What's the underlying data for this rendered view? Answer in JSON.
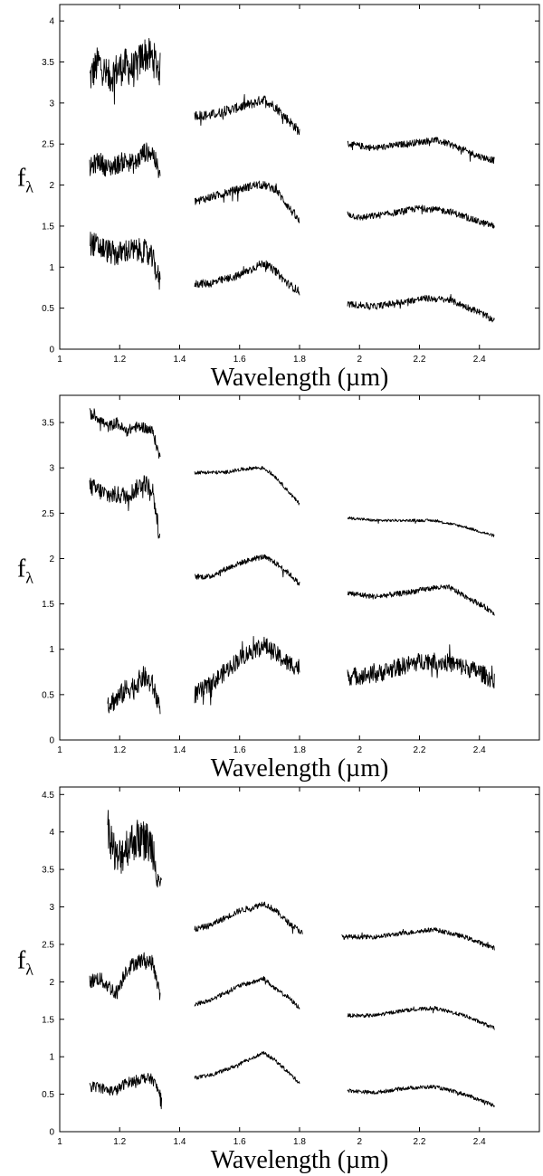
{
  "chart_data": [
    {
      "type": "line",
      "xlabel": "Wavelength (µm)",
      "ylabel": "f",
      "ylabel_sub": "λ",
      "xlim": [
        1.0,
        2.6
      ],
      "ylim": [
        0,
        4.2
      ],
      "xticks": [
        1,
        1.2,
        1.4,
        1.6,
        1.8,
        2,
        2.2,
        2.4
      ],
      "yticks": [
        0,
        0.5,
        1,
        1.5,
        2,
        2.5,
        3,
        3.5,
        4
      ],
      "grid": false,
      "series": [
        {
          "noise": [
            0.22,
            0.06,
            0.04
          ],
          "J": [
            [
              1.1,
              3.3
            ],
            [
              1.13,
              3.5
            ],
            [
              1.16,
              3.3
            ],
            [
              1.19,
              3.4
            ],
            [
              1.22,
              3.45
            ],
            [
              1.25,
              3.4
            ],
            [
              1.28,
              3.6
            ],
            [
              1.31,
              3.55
            ],
            [
              1.335,
              3.4
            ]
          ],
          "H": [
            [
              1.45,
              2.85
            ],
            [
              1.5,
              2.85
            ],
            [
              1.55,
              2.9
            ],
            [
              1.6,
              2.95
            ],
            [
              1.65,
              3.0
            ],
            [
              1.68,
              3.05
            ],
            [
              1.72,
              2.95
            ],
            [
              1.76,
              2.8
            ],
            [
              1.8,
              2.65
            ]
          ],
          "K": [
            [
              1.96,
              2.5
            ],
            [
              2.05,
              2.45
            ],
            [
              2.15,
              2.5
            ],
            [
              2.25,
              2.55
            ],
            [
              2.3,
              2.5
            ],
            [
              2.4,
              2.35
            ],
            [
              2.45,
              2.3
            ]
          ]
        },
        {
          "noise": [
            0.12,
            0.05,
            0.04
          ],
          "J": [
            [
              1.1,
              2.2
            ],
            [
              1.13,
              2.3
            ],
            [
              1.16,
              2.2
            ],
            [
              1.19,
              2.25
            ],
            [
              1.22,
              2.3
            ],
            [
              1.25,
              2.25
            ],
            [
              1.28,
              2.4
            ],
            [
              1.31,
              2.4
            ],
            [
              1.335,
              2.1
            ]
          ],
          "H": [
            [
              1.45,
              1.8
            ],
            [
              1.5,
              1.85
            ],
            [
              1.55,
              1.9
            ],
            [
              1.6,
              1.95
            ],
            [
              1.65,
              2.0
            ],
            [
              1.68,
              2.0
            ],
            [
              1.72,
              1.95
            ],
            [
              1.76,
              1.75
            ],
            [
              1.8,
              1.55
            ]
          ],
          "K": [
            [
              1.96,
              1.65
            ],
            [
              2.0,
              1.6
            ],
            [
              2.1,
              1.65
            ],
            [
              2.2,
              1.72
            ],
            [
              2.3,
              1.68
            ],
            [
              2.4,
              1.55
            ],
            [
              2.45,
              1.5
            ]
          ]
        },
        {
          "noise": [
            0.15,
            0.05,
            0.04
          ],
          "J": [
            [
              1.1,
              1.3
            ],
            [
              1.13,
              1.25
            ],
            [
              1.16,
              1.2
            ],
            [
              1.19,
              1.15
            ],
            [
              1.22,
              1.2
            ],
            [
              1.25,
              1.2
            ],
            [
              1.28,
              1.2
            ],
            [
              1.31,
              1.1
            ],
            [
              1.335,
              0.8
            ]
          ],
          "H": [
            [
              1.45,
              0.8
            ],
            [
              1.5,
              0.8
            ],
            [
              1.55,
              0.85
            ],
            [
              1.6,
              0.9
            ],
            [
              1.65,
              1.0
            ],
            [
              1.68,
              1.05
            ],
            [
              1.72,
              0.95
            ],
            [
              1.76,
              0.8
            ],
            [
              1.8,
              0.7
            ]
          ],
          "K": [
            [
              1.96,
              0.55
            ],
            [
              2.05,
              0.52
            ],
            [
              2.15,
              0.58
            ],
            [
              2.22,
              0.62
            ],
            [
              2.3,
              0.6
            ],
            [
              2.4,
              0.45
            ],
            [
              2.45,
              0.35
            ]
          ]
        }
      ]
    },
    {
      "type": "line",
      "xlabel": "Wavelength (µm)",
      "ylabel": "f",
      "ylabel_sub": "λ",
      "xlim": [
        1.0,
        2.6
      ],
      "ylim": [
        0,
        3.8
      ],
      "xticks": [
        1,
        1.2,
        1.4,
        1.6,
        1.8,
        2,
        2.2,
        2.4
      ],
      "yticks": [
        0,
        0.5,
        1,
        1.5,
        2,
        2.5,
        3,
        3.5
      ],
      "grid": false,
      "series": [
        {
          "noise": [
            0.06,
            0.02,
            0.015
          ],
          "J": [
            [
              1.1,
              3.6
            ],
            [
              1.13,
              3.55
            ],
            [
              1.16,
              3.45
            ],
            [
              1.19,
              3.5
            ],
            [
              1.22,
              3.4
            ],
            [
              1.25,
              3.45
            ],
            [
              1.28,
              3.45
            ],
            [
              1.31,
              3.4
            ],
            [
              1.335,
              3.1
            ]
          ],
          "H": [
            [
              1.45,
              2.95
            ],
            [
              1.5,
              2.95
            ],
            [
              1.55,
              2.95
            ],
            [
              1.6,
              2.98
            ],
            [
              1.65,
              3.0
            ],
            [
              1.68,
              3.0
            ],
            [
              1.72,
              2.9
            ],
            [
              1.76,
              2.75
            ],
            [
              1.8,
              2.6
            ]
          ],
          "K": [
            [
              1.96,
              2.45
            ],
            [
              2.05,
              2.42
            ],
            [
              2.15,
              2.42
            ],
            [
              2.25,
              2.42
            ],
            [
              2.35,
              2.35
            ],
            [
              2.45,
              2.25
            ]
          ]
        },
        {
          "noise": [
            0.1,
            0.03,
            0.03
          ],
          "J": [
            [
              1.1,
              2.8
            ],
            [
              1.13,
              2.75
            ],
            [
              1.16,
              2.7
            ],
            [
              1.19,
              2.7
            ],
            [
              1.22,
              2.7
            ],
            [
              1.25,
              2.75
            ],
            [
              1.28,
              2.85
            ],
            [
              1.31,
              2.75
            ],
            [
              1.335,
              2.2
            ]
          ],
          "H": [
            [
              1.45,
              1.8
            ],
            [
              1.5,
              1.8
            ],
            [
              1.55,
              1.88
            ],
            [
              1.6,
              1.95
            ],
            [
              1.65,
              2.0
            ],
            [
              1.68,
              2.02
            ],
            [
              1.72,
              1.95
            ],
            [
              1.76,
              1.85
            ],
            [
              1.8,
              1.72
            ]
          ],
          "K": [
            [
              1.96,
              1.62
            ],
            [
              2.05,
              1.58
            ],
            [
              2.15,
              1.62
            ],
            [
              2.25,
              1.68
            ],
            [
              2.3,
              1.68
            ],
            [
              2.4,
              1.5
            ],
            [
              2.45,
              1.4
            ]
          ]
        },
        {
          "noise": [
            0.12,
            0.1,
            0.1
          ],
          "J": [
            [
              1.16,
              0.4
            ],
            [
              1.19,
              0.45
            ],
            [
              1.22,
              0.55
            ],
            [
              1.25,
              0.6
            ],
            [
              1.28,
              0.7
            ],
            [
              1.31,
              0.6
            ],
            [
              1.335,
              0.35
            ]
          ],
          "H": [
            [
              1.45,
              0.5
            ],
            [
              1.5,
              0.6
            ],
            [
              1.55,
              0.75
            ],
            [
              1.6,
              0.9
            ],
            [
              1.65,
              1.0
            ],
            [
              1.68,
              1.05
            ],
            [
              1.72,
              0.95
            ],
            [
              1.76,
              0.85
            ],
            [
              1.8,
              0.8
            ]
          ],
          "K": [
            [
              1.96,
              0.7
            ],
            [
              2.05,
              0.72
            ],
            [
              2.15,
              0.82
            ],
            [
              2.22,
              0.88
            ],
            [
              2.3,
              0.85
            ],
            [
              2.4,
              0.75
            ],
            [
              2.45,
              0.65
            ]
          ]
        }
      ]
    },
    {
      "type": "line",
      "xlabel": "Wavelength (µm)",
      "ylabel": "f",
      "ylabel_sub": "λ",
      "xlim": [
        1.0,
        2.6
      ],
      "ylim": [
        0,
        4.6
      ],
      "xticks": [
        1,
        1.2,
        1.4,
        1.6,
        1.8,
        2,
        2.2,
        2.4
      ],
      "yticks": [
        0,
        0.5,
        1,
        1.5,
        2,
        2.5,
        3,
        3.5,
        4,
        4.5
      ],
      "grid": false,
      "series": [
        {
          "noise": [
            0.28,
            0.04,
            0.03
          ],
          "J": [
            [
              1.16,
              4.1
            ],
            [
              1.19,
              3.6
            ],
            [
              1.22,
              3.8
            ],
            [
              1.25,
              3.9
            ],
            [
              1.28,
              3.9
            ],
            [
              1.31,
              3.8
            ],
            [
              1.34,
              3.2
            ]
          ],
          "H": [
            [
              1.45,
              2.7
            ],
            [
              1.5,
              2.75
            ],
            [
              1.55,
              2.85
            ],
            [
              1.6,
              2.95
            ],
            [
              1.65,
              3.0
            ],
            [
              1.68,
              3.05
            ],
            [
              1.72,
              2.95
            ],
            [
              1.76,
              2.8
            ],
            [
              1.81,
              2.65
            ]
          ],
          "K": [
            [
              1.94,
              2.6
            ],
            [
              2.05,
              2.6
            ],
            [
              2.15,
              2.65
            ],
            [
              2.25,
              2.7
            ],
            [
              2.35,
              2.6
            ],
            [
              2.45,
              2.45
            ]
          ]
        },
        {
          "noise": [
            0.1,
            0.03,
            0.025
          ],
          "J": [
            [
              1.1,
              2.0
            ],
            [
              1.13,
              2.05
            ],
            [
              1.16,
              1.95
            ],
            [
              1.19,
              1.85
            ],
            [
              1.22,
              2.15
            ],
            [
              1.25,
              2.25
            ],
            [
              1.28,
              2.3
            ],
            [
              1.31,
              2.25
            ],
            [
              1.335,
              1.8
            ]
          ],
          "H": [
            [
              1.45,
              1.7
            ],
            [
              1.5,
              1.75
            ],
            [
              1.55,
              1.85
            ],
            [
              1.6,
              1.95
            ],
            [
              1.65,
              2.0
            ],
            [
              1.68,
              2.05
            ],
            [
              1.72,
              1.9
            ],
            [
              1.76,
              1.8
            ],
            [
              1.8,
              1.65
            ]
          ],
          "K": [
            [
              1.96,
              1.55
            ],
            [
              2.05,
              1.55
            ],
            [
              2.15,
              1.62
            ],
            [
              2.25,
              1.65
            ],
            [
              2.35,
              1.55
            ],
            [
              2.45,
              1.38
            ]
          ]
        },
        {
          "noise": [
            0.07,
            0.025,
            0.025
          ],
          "J": [
            [
              1.1,
              0.6
            ],
            [
              1.13,
              0.6
            ],
            [
              1.16,
              0.55
            ],
            [
              1.19,
              0.55
            ],
            [
              1.22,
              0.65
            ],
            [
              1.25,
              0.68
            ],
            [
              1.28,
              0.72
            ],
            [
              1.31,
              0.7
            ],
            [
              1.34,
              0.45
            ]
          ],
          "H": [
            [
              1.45,
              0.72
            ],
            [
              1.5,
              0.75
            ],
            [
              1.55,
              0.82
            ],
            [
              1.6,
              0.9
            ],
            [
              1.65,
              1.0
            ],
            [
              1.68,
              1.05
            ],
            [
              1.72,
              0.95
            ],
            [
              1.76,
              0.8
            ],
            [
              1.8,
              0.65
            ]
          ],
          "K": [
            [
              1.96,
              0.55
            ],
            [
              2.05,
              0.52
            ],
            [
              2.15,
              0.58
            ],
            [
              2.25,
              0.6
            ],
            [
              2.35,
              0.5
            ],
            [
              2.45,
              0.35
            ]
          ]
        }
      ]
    }
  ]
}
